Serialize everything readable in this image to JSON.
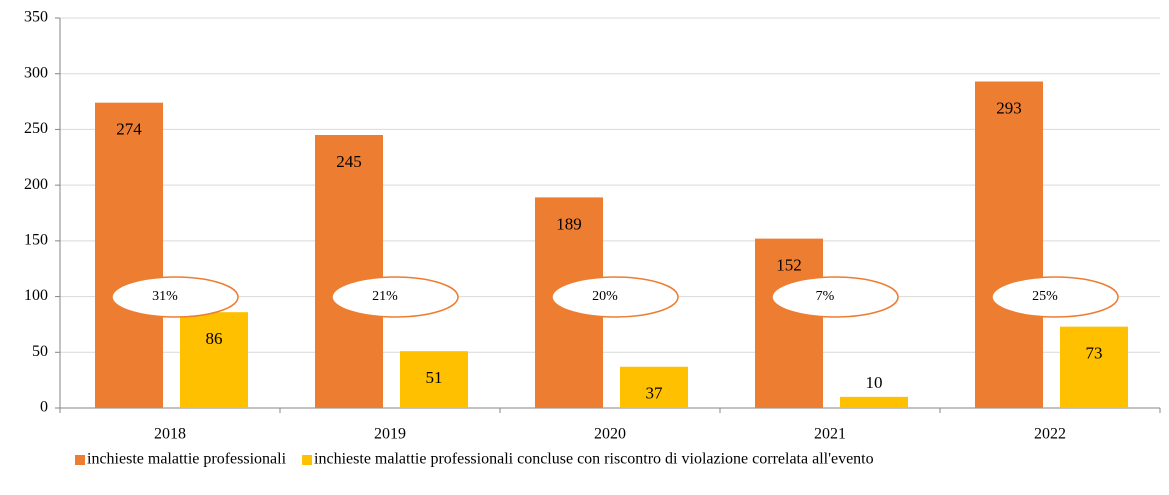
{
  "chart_data": {
    "type": "bar",
    "categories": [
      "2018",
      "2019",
      "2020",
      "2021",
      "2022"
    ],
    "series": [
      {
        "name": "inchieste malattie professionali",
        "color": "#ed7d31",
        "values": [
          274,
          245,
          189,
          152,
          293
        ]
      },
      {
        "name": "inchieste malattie professionali concluse con riscontro di violazione correlata all'evento",
        "color": "#ffc000",
        "values": [
          86,
          51,
          37,
          10,
          73
        ]
      }
    ],
    "annotations": [
      "31%",
      "21%",
      "20%",
      "7%",
      "25%"
    ],
    "ylim": [
      0,
      350
    ],
    "yticks": [
      0,
      50,
      100,
      150,
      200,
      250,
      300,
      350
    ],
    "grid": true,
    "legend": "bottom"
  }
}
